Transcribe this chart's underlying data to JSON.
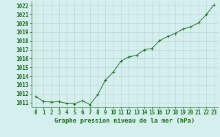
{
  "x": [
    0,
    1,
    2,
    3,
    4,
    5,
    6,
    7,
    8,
    9,
    10,
    11,
    12,
    13,
    14,
    15,
    16,
    17,
    18,
    19,
    20,
    21,
    22,
    23
  ],
  "y": [
    1011.7,
    1011.1,
    1011.05,
    1011.1,
    1010.9,
    1010.85,
    1011.2,
    1010.75,
    1011.9,
    1013.55,
    1014.45,
    1015.7,
    1016.2,
    1016.35,
    1017.0,
    1017.15,
    1018.05,
    1018.5,
    1018.85,
    1019.35,
    1019.6,
    1020.05,
    1021.0,
    1022.1
  ],
  "title": "Graphe pression niveau de la mer (hPa)",
  "bg_color": "#d5eeee",
  "grid_color": "#b8d8d8",
  "line_color": "#1a6e1a",
  "marker_color": "#1a6e1a",
  "text_color": "#1a6e1a",
  "ylim_min": 1010.5,
  "ylim_max": 1022.5,
  "ytick_min": 1011,
  "ytick_max": 1022,
  "tick_fontsize": 5.5,
  "xlabel_fontsize": 6.5
}
